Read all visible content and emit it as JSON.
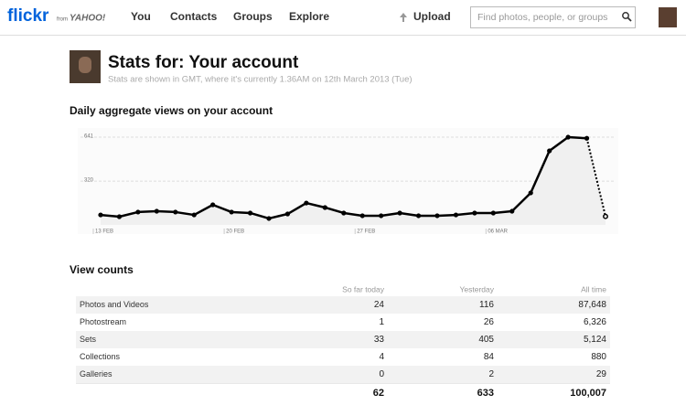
{
  "header": {
    "logo": "flickr",
    "logo_from": "from",
    "logo_yahoo": "YAHOO!",
    "nav": [
      "You",
      "Contacts",
      "Groups",
      "Explore"
    ],
    "upload": "Upload",
    "search_placeholder": "Find photos, people, or groups"
  },
  "page": {
    "title": "Stats for: Your account",
    "subtitle": "Stats are shown in GMT, where it's currently 1.36AM on 12th March 2013 (Tue)"
  },
  "chart_data": {
    "type": "line",
    "title": "Daily aggregate views on your account",
    "categories": [
      "13 FEB",
      null,
      null,
      null,
      null,
      null,
      null,
      "20 FEB",
      null,
      null,
      null,
      null,
      null,
      null,
      "27 FEB",
      null,
      null,
      null,
      null,
      null,
      null,
      "06 MAR",
      null,
      null,
      null,
      null,
      null,
      null
    ],
    "values": [
      73,
      60,
      94,
      100,
      94,
      73,
      147,
      94,
      87,
      47,
      80,
      160,
      127,
      87,
      67,
      67,
      87,
      67,
      67,
      73,
      87,
      87,
      100,
      234,
      541,
      641,
      633,
      62
    ],
    "color": "#000000",
    "ylim": [
      0,
      690
    ],
    "yticks": [
      320,
      641
    ],
    "grid": true,
    "last_segment_dotted": true
  },
  "table": {
    "title": "View counts",
    "columns": [
      "So far today",
      "Yesterday",
      "All time"
    ],
    "rows": [
      [
        "Photos and Videos",
        "24",
        "116",
        "87,648"
      ],
      [
        "Photostream",
        "1",
        "26",
        "6,326"
      ],
      [
        "Sets",
        "33",
        "405",
        "5,124"
      ],
      [
        "Collections",
        "4",
        "84",
        "880"
      ],
      [
        "Galleries",
        "0",
        "2",
        "29"
      ]
    ],
    "totals": [
      "62",
      "633",
      "100,007"
    ]
  }
}
